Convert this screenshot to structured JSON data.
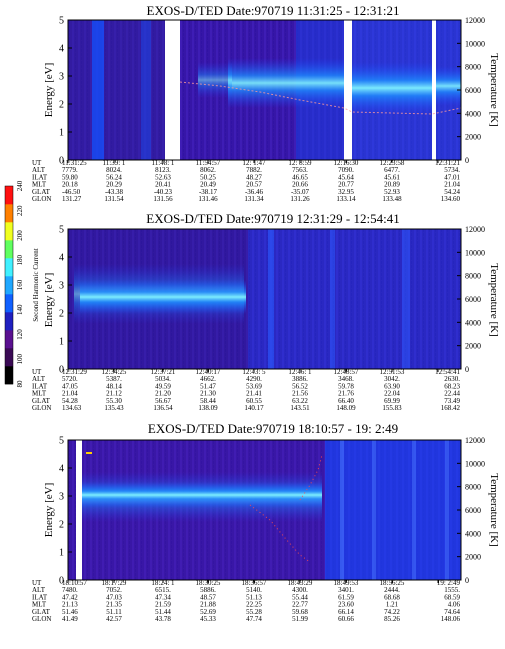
{
  "energy_label": "Energy [eV]",
  "temperature_label": "Temperature [K]",
  "colorbar": {
    "label": "Second Harmonic Current",
    "ticks": [
      "80",
      "100",
      "120",
      "140",
      "160",
      "180",
      "200",
      "220",
      "240"
    ],
    "colors": [
      "#000000",
      "#3a0a55",
      "#5a1090",
      "#2020c0",
      "#1060ff",
      "#20a8ff",
      "#40f0ff",
      "#60ff60",
      "#f0ff20",
      "#ff8000",
      "#ff1010"
    ]
  },
  "row_labels": [
    "UT",
    "ALT",
    "ILAT",
    "MLT",
    "GLAT",
    "GLON"
  ],
  "panels": [
    {
      "title": "EXOS-D/TED   Date:970719   11:31:25 - 12:31:21",
      "energy_ticks": [
        "0",
        "1",
        "2",
        "3",
        "4",
        "5"
      ],
      "temp_ticks": [
        "0",
        "2000",
        "4000",
        "6000",
        "8000",
        "10000",
        "12000"
      ],
      "columns": [
        [
          "11:31:25",
          "7779.",
          "59.80",
          "20.18",
          "-46.50",
          "131.27"
        ],
        [
          "11:39: 1",
          "8024.",
          "56.24",
          "20.29",
          "-43.38",
          "131.54"
        ],
        [
          "11:48: 1",
          "8123.",
          "52.63",
          "20.41",
          "-40.23",
          "131.56"
        ],
        [
          "11:54:57",
          "8062.",
          "50.25",
          "20.49",
          "-38.17",
          "131.46"
        ],
        [
          "12: 1:47",
          "7882.",
          "48.27",
          "20.57",
          "-36.46",
          "131.34"
        ],
        [
          "12: 8:59",
          "7563.",
          "46.65",
          "20.66",
          "-35.07",
          "131.26"
        ],
        [
          "12:16:30",
          "7090.",
          "45.64",
          "20.77",
          "32.95",
          "133.14"
        ],
        [
          "12:23:58",
          "6477.",
          "45.61",
          "20.89",
          "52.93",
          "133.48"
        ],
        [
          "12:31:21",
          "5734.",
          "47.01",
          "21.04",
          "54.24",
          "134.60"
        ]
      ]
    },
    {
      "title": "EXOS-D/TED   Date:970719   12:31:29 - 12:54:41",
      "energy_ticks": [
        "0",
        "1",
        "2",
        "3",
        "4",
        "5"
      ],
      "temp_ticks": [
        "0",
        "2000",
        "4000",
        "6000",
        "8000",
        "10000",
        "12000"
      ],
      "columns": [
        [
          "12:31:29",
          "5720.",
          "47.05",
          "21.04",
          "54.28",
          "134.63"
        ],
        [
          "12:34:25",
          "5387.",
          "48.14",
          "21.12",
          "55.30",
          "135.43"
        ],
        [
          "12:37:21",
          "5034.",
          "49.59",
          "21.20",
          "56.67",
          "136.54"
        ],
        [
          "12:40:17",
          "4662.",
          "51.47",
          "21.30",
          "58.44",
          "138.09"
        ],
        [
          "12:43: 5",
          "4290.",
          "53.69",
          "21.41",
          "60.55",
          "140.17"
        ],
        [
          "12:46: 1",
          "3886.",
          "56.52",
          "21.56",
          "63.22",
          "143.51"
        ],
        [
          "12:48:57",
          "3468.",
          "59.78",
          "21.76",
          "66.40",
          "148.09"
        ],
        [
          "12:51:53",
          "3042.",
          "63.90",
          "22.04",
          "69.99",
          "155.83"
        ],
        [
          "12:54:41",
          "2630.",
          "68.23",
          "22.44",
          "73.49",
          "168.42"
        ]
      ]
    },
    {
      "title": "EXOS-D/TED   Date:970719   18:10:57 - 19: 2:49",
      "energy_ticks": [
        "0",
        "1",
        "2",
        "3",
        "4",
        "5"
      ],
      "temp_ticks": [
        "0",
        "2000",
        "4000",
        "6000",
        "8000",
        "10000",
        "12000"
      ],
      "columns": [
        [
          "18:10:57",
          "7480.",
          "47.42",
          "21.13",
          "51.46",
          "41.49"
        ],
        [
          "18:17:29",
          "7052.",
          "47.03",
          "21.35",
          "51.11",
          "42.57"
        ],
        [
          "18:24: 1",
          "6515.",
          "47.34",
          "21.59",
          "51.44",
          "43.78"
        ],
        [
          "18:30:25",
          "5886.",
          "48.57",
          "21.88",
          "52.69",
          "45.33"
        ],
        [
          "18:36:57",
          "5140.",
          "51.13",
          "22.25",
          "55.28",
          "47.74"
        ],
        [
          "18:43:29",
          "4300.",
          "55.44",
          "22.77",
          "59.68",
          "51.99"
        ],
        [
          "18:49:53",
          "3401.",
          "61.59",
          "23.60",
          "66.14",
          "60.66"
        ],
        [
          "18:56:25",
          "2444.",
          "68.68",
          "1.21",
          "74.22",
          "85.26"
        ],
        [
          "19: 2:49",
          "1555.",
          "68.59",
          "4.06",
          "74.64",
          "148.06"
        ]
      ]
    }
  ],
  "chart_data": [
    {
      "type": "heatmap",
      "title": "EXOS-D/TED   Date:970719   11:31:25 - 12:31:21",
      "ylabel": "Energy [eV]",
      "y2label": "Temperature [K]",
      "ylim": [
        0,
        5
      ],
      "y2lim": [
        0,
        12000
      ],
      "x": [
        "11:31:25",
        "11:39: 1",
        "11:48: 1",
        "11:54:57",
        "12: 1:47",
        "12: 8:59",
        "12:16:30",
        "12:23:58",
        "12:31:21"
      ],
      "data_gaps": [
        [
          "11:47:10",
          "11:48:50"
        ],
        [
          "12:16:05",
          "12:16:30"
        ],
        [
          "12:26:20",
          "12:26:50"
        ]
      ],
      "peak_energy_ev": [
        2.6,
        2.6,
        2.6,
        3.0,
        2.9,
        2.6,
        2.1,
        2.1,
        2.5
      ],
      "temperature_k": [
        null,
        null,
        5800,
        5400,
        5000,
        4600,
        4300,
        4200,
        4200
      ]
    },
    {
      "type": "heatmap",
      "title": "EXOS-D/TED   Date:970719   12:31:29 - 12:54:41",
      "ylabel": "Energy [eV]",
      "y2label": "Temperature [K]",
      "ylim": [
        0,
        5
      ],
      "y2lim": [
        0,
        12000
      ],
      "colorbar_label": "Second Harmonic Current",
      "colorbar_range": [
        80,
        240
      ],
      "x": [
        "12:31:29",
        "12:34:25",
        "12:37:21",
        "12:40:17",
        "12:43: 5",
        "12:46: 1",
        "12:48:57",
        "12:51:53",
        "12:54:41"
      ],
      "peak_energy_ev": [
        2.5,
        2.3,
        2.2,
        2.2,
        null,
        null,
        null,
        null,
        null
      ]
    },
    {
      "type": "heatmap",
      "title": "EXOS-D/TED   Date:970719   18:10:57 - 19: 2:49",
      "ylabel": "Energy [eV]",
      "y2label": "Temperature [K]",
      "ylim": [
        0,
        5
      ],
      "y2lim": [
        0,
        12000
      ],
      "x": [
        "18:10:57",
        "18:17:29",
        "18:24: 1",
        "18:30:25",
        "18:36:57",
        "18:43:29",
        "18:49:53",
        "18:56:25",
        "19: 2:49"
      ],
      "peak_energy_ev": [
        3.0,
        2.9,
        2.9,
        2.9,
        2.7,
        2.3,
        null,
        null,
        null
      ]
    }
  ]
}
